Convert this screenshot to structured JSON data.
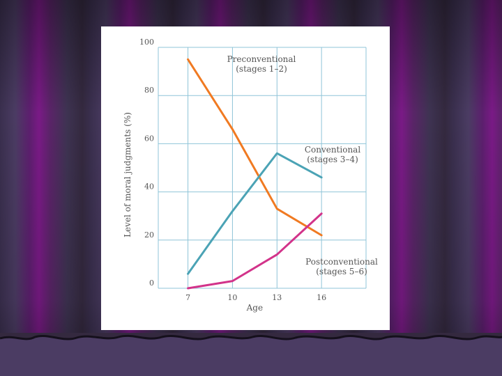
{
  "chart_data": {
    "type": "line",
    "title": "",
    "xlabel": "Age",
    "ylabel": "Level of moral judgments (%)",
    "x": [
      7,
      10,
      13,
      16
    ],
    "xlim": [
      5,
      19
    ],
    "ylim": [
      0,
      100
    ],
    "yticks": [
      0,
      20,
      40,
      60,
      80,
      100
    ],
    "grid": true,
    "series": [
      {
        "name": "Preconventional",
        "sublabel": "(stages 1–2)",
        "color": "#f07a22",
        "values": [
          95,
          66,
          33,
          22
        ]
      },
      {
        "name": "Conventional",
        "sublabel": "(stages 3–4)",
        "color": "#4ba3b5",
        "values": [
          6,
          32,
          56,
          46
        ]
      },
      {
        "name": "Postconventional",
        "sublabel": "(stages 5–6)",
        "color": "#d2338a",
        "values": [
          0,
          3,
          14,
          31
        ]
      }
    ]
  }
}
